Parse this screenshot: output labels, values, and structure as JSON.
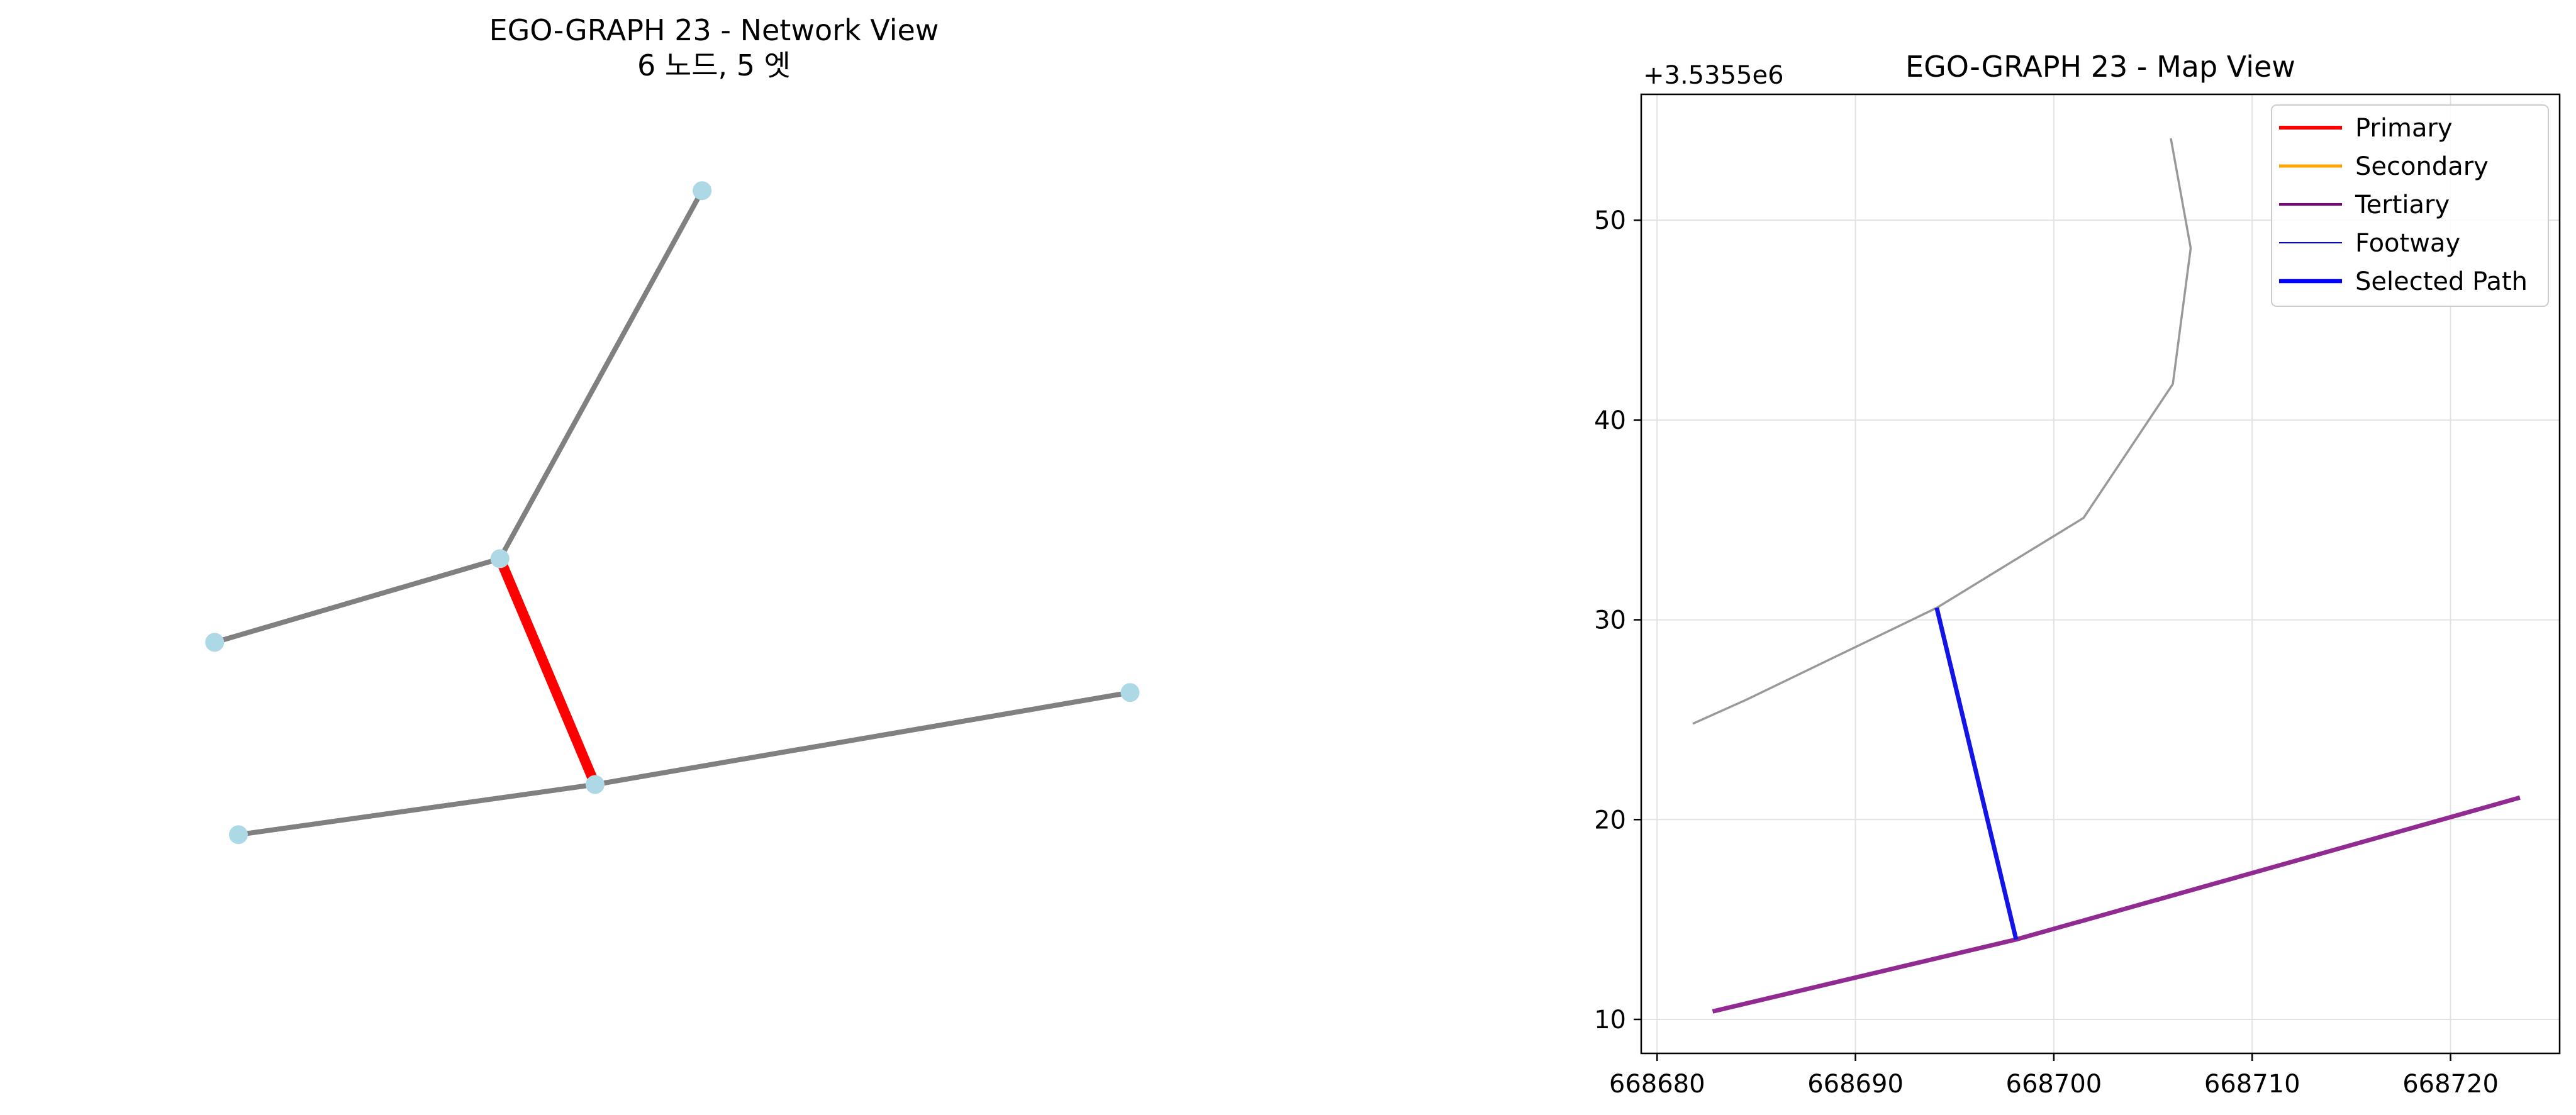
{
  "chart_data": [
    {
      "type": "network",
      "title": "EGO-GRAPH 23 - Network View",
      "subtitle": "6 노드, 5 엣",
      "colors": {
        "node": "#add8e6",
        "edge": "#808080",
        "highlight": "#ff0000"
      },
      "nodes": [
        {
          "id": "n1",
          "x": 0.49,
          "y": 0.96
        },
        {
          "id": "n2",
          "x": 0.32,
          "y": 0.52
        },
        {
          "id": "n3",
          "x": 0.08,
          "y": 0.42
        },
        {
          "id": "n4",
          "x": 0.85,
          "y": 0.36
        },
        {
          "id": "n5",
          "x": 0.4,
          "y": 0.25
        },
        {
          "id": "n6",
          "x": 0.1,
          "y": 0.19
        }
      ],
      "edges": [
        {
          "source": "n2",
          "target": "n1",
          "highlight": false
        },
        {
          "source": "n2",
          "target": "n3",
          "highlight": false
        },
        {
          "source": "n2",
          "target": "n5",
          "highlight": true
        },
        {
          "source": "n5",
          "target": "n4",
          "highlight": false
        },
        {
          "source": "n5",
          "target": "n6",
          "highlight": false
        }
      ],
      "xlim": [
        0,
        1
      ],
      "ylim": [
        0,
        1
      ]
    },
    {
      "type": "line",
      "title": "EGO-GRAPH 23 - Map View",
      "y_offset_label": "+3.5355e6",
      "xlim": [
        668679.2,
        668725.5
      ],
      "ylim": [
        8.3,
        56.3
      ],
      "xticks": [
        668680,
        668690,
        668700,
        668710,
        668720
      ],
      "yticks": [
        10,
        20,
        30,
        40,
        50
      ],
      "grid": true,
      "legend": {
        "position": "top-right",
        "entries": [
          {
            "label": "Primary",
            "color": "#ff0000",
            "width": 6
          },
          {
            "label": "Secondary",
            "color": "#ffa500",
            "width": 5
          },
          {
            "label": "Tertiary",
            "color": "#800080",
            "width": 4
          },
          {
            "label": "Footway",
            "color": "#0000ff",
            "width": 2
          },
          {
            "label": "Selected Path",
            "color": "#0000ff",
            "width": 6.5
          }
        ]
      },
      "series": [
        {
          "style": "footway-gray",
          "color": "#999999",
          "x": [
            668681.8,
            668684.5,
            668694.1,
            668701.5,
            668706.0,
            668706.9,
            668705.9
          ],
          "y": [
            24.8,
            26.0,
            30.6,
            35.1,
            41.8,
            48.6,
            54.1
          ]
        },
        {
          "style": "tertiary",
          "color": "#912a91",
          "x": [
            668682.8,
            668698.1,
            668723.5
          ],
          "y": [
            10.4,
            14.0,
            21.1
          ]
        },
        {
          "style": "selected",
          "color": "#1414e6",
          "x": [
            668694.1,
            668698.1
          ],
          "y": [
            30.6,
            14.0
          ]
        }
      ]
    }
  ]
}
